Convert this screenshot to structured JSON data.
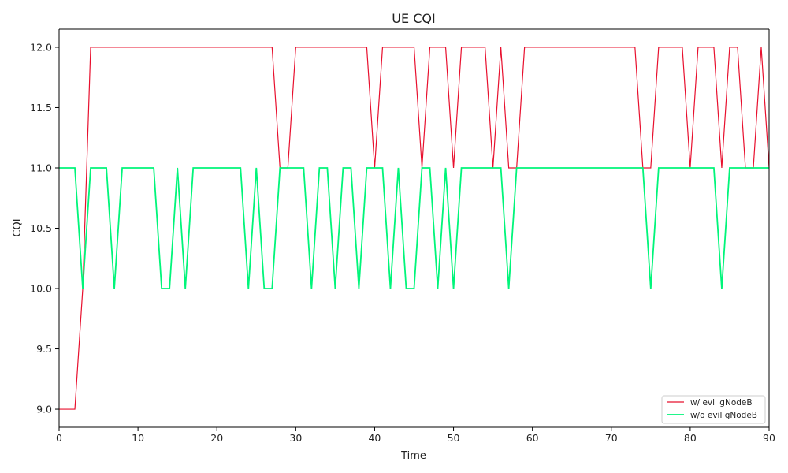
{
  "chart_data": {
    "type": "line",
    "title": "UE CQI",
    "xlabel": "Time",
    "ylabel": "CQI",
    "xlim": [
      0,
      90
    ],
    "ylim": [
      8.85,
      12.15
    ],
    "xticks": [
      0,
      10,
      20,
      30,
      40,
      50,
      60,
      70,
      80,
      90
    ],
    "xtick_labels": [
      "0",
      "10",
      "20",
      "30",
      "40",
      "50",
      "60",
      "70",
      "80",
      "90"
    ],
    "yticks": [
      9.0,
      9.5,
      10.0,
      10.5,
      11.0,
      11.5,
      12.0
    ],
    "ytick_labels": [
      "9.0",
      "9.5",
      "10.0",
      "10.5",
      "11.0",
      "11.5",
      "12.0"
    ],
    "grid": false,
    "legend_position": "bottom-right",
    "x": [
      0,
      1,
      2,
      3,
      4,
      5,
      6,
      7,
      8,
      9,
      10,
      11,
      12,
      13,
      14,
      15,
      16,
      17,
      18,
      19,
      20,
      21,
      22,
      23,
      24,
      25,
      26,
      27,
      28,
      29,
      30,
      31,
      32,
      33,
      34,
      35,
      36,
      37,
      38,
      39,
      40,
      41,
      42,
      43,
      44,
      45,
      46,
      47,
      48,
      49,
      50,
      51,
      52,
      53,
      54,
      55,
      56,
      57,
      58,
      59,
      60,
      61,
      62,
      63,
      64,
      65,
      66,
      67,
      68,
      69,
      70,
      71,
      72,
      73,
      74,
      75,
      76,
      77,
      78,
      79,
      80,
      81,
      82,
      83,
      84,
      85,
      86,
      87,
      88,
      89,
      90
    ],
    "series": [
      {
        "name": "w/ evil gNodeB",
        "color": "#e8102e",
        "values": [
          9,
          9,
          9,
          10,
          12,
          12,
          12,
          12,
          12,
          12,
          12,
          12,
          12,
          12,
          12,
          12,
          12,
          12,
          12,
          12,
          12,
          12,
          12,
          12,
          12,
          12,
          12,
          12,
          11,
          11,
          12,
          12,
          12,
          12,
          12,
          12,
          12,
          12,
          12,
          12,
          11,
          12,
          12,
          12,
          12,
          12,
          11,
          12,
          12,
          12,
          11,
          12,
          12,
          12,
          12,
          11,
          12,
          11,
          11,
          12,
          12,
          12,
          12,
          12,
          12,
          12,
          12,
          12,
          12,
          12,
          12,
          12,
          12,
          12,
          11,
          11,
          12,
          12,
          12,
          12,
          11,
          12,
          12,
          12,
          11,
          12,
          12,
          11,
          11,
          12,
          11
        ]
      },
      {
        "name": "w/o evil gNodeB",
        "color": "#00f57a",
        "values": [
          11,
          11,
          11,
          10,
          11,
          11,
          11,
          10,
          11,
          11,
          11,
          11,
          11,
          10,
          10,
          11,
          10,
          11,
          11,
          11,
          11,
          11,
          11,
          11,
          10,
          11,
          10,
          10,
          11,
          11,
          11,
          11,
          10,
          11,
          11,
          10,
          11,
          11,
          10,
          11,
          11,
          11,
          10,
          11,
          10,
          10,
          11,
          11,
          10,
          11,
          10,
          11,
          11,
          11,
          11,
          11,
          11,
          10,
          11,
          11,
          11,
          11,
          11,
          11,
          11,
          11,
          11,
          11,
          11,
          11,
          11,
          11,
          11,
          11,
          11,
          10,
          11,
          11,
          11,
          11,
          11,
          11,
          11,
          11,
          10,
          11,
          11,
          11,
          11,
          11,
          11
        ]
      }
    ]
  }
}
